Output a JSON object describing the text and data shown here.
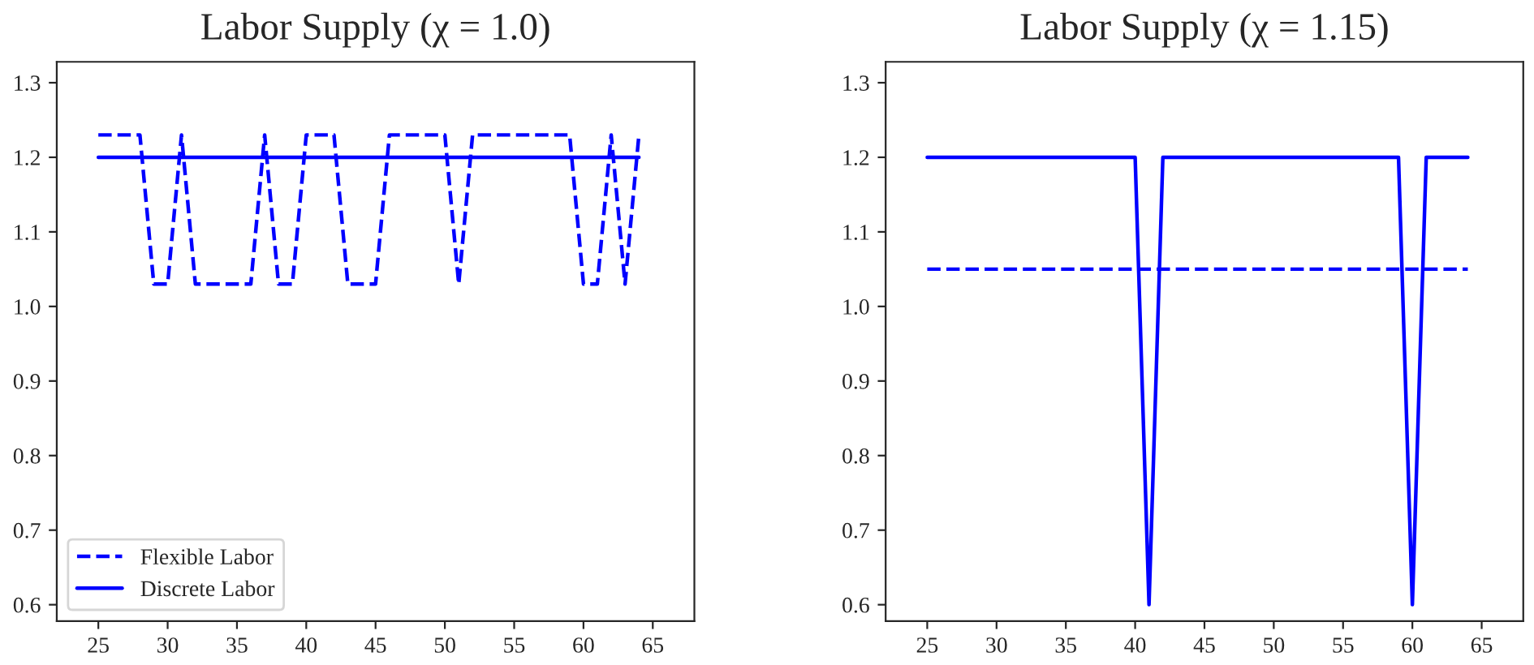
{
  "chart_data": [
    {
      "type": "line",
      "title": "Labor Supply (χ = 1.0)",
      "x": [
        25,
        26,
        27,
        28,
        29,
        30,
        31,
        32,
        33,
        34,
        35,
        36,
        37,
        38,
        39,
        40,
        41,
        42,
        43,
        44,
        45,
        46,
        47,
        48,
        49,
        50,
        51,
        52,
        53,
        54,
        55,
        56,
        57,
        58,
        59,
        60,
        61,
        62,
        63,
        64
      ],
      "series": [
        {
          "name": "Flexible Labor",
          "color": "#0000ff",
          "line_style": "dashed",
          "values": [
            1.23,
            1.23,
            1.23,
            1.23,
            1.03,
            1.03,
            1.23,
            1.03,
            1.03,
            1.03,
            1.03,
            1.03,
            1.23,
            1.03,
            1.03,
            1.23,
            1.23,
            1.23,
            1.03,
            1.03,
            1.03,
            1.23,
            1.23,
            1.23,
            1.23,
            1.23,
            1.03,
            1.23,
            1.23,
            1.23,
            1.23,
            1.23,
            1.23,
            1.23,
            1.23,
            1.03,
            1.03,
            1.23,
            1.03,
            1.23
          ]
        },
        {
          "name": "Discrete Labor",
          "color": "#0000ff",
          "line_style": "solid",
          "values": [
            1.2,
            1.2,
            1.2,
            1.2,
            1.2,
            1.2,
            1.2,
            1.2,
            1.2,
            1.2,
            1.2,
            1.2,
            1.2,
            1.2,
            1.2,
            1.2,
            1.2,
            1.2,
            1.2,
            1.2,
            1.2,
            1.2,
            1.2,
            1.2,
            1.2,
            1.2,
            1.2,
            1.2,
            1.2,
            1.2,
            1.2,
            1.2,
            1.2,
            1.2,
            1.2,
            1.2,
            1.2,
            1.2,
            1.2,
            1.2
          ]
        }
      ],
      "xlim": [
        22,
        68
      ],
      "xticks": [
        25,
        30,
        35,
        40,
        45,
        50,
        55,
        60,
        65
      ],
      "ylim": [
        0.578,
        1.328
      ],
      "yticks": [
        0.6,
        0.7,
        0.8,
        0.9,
        {
          "value": 1.0,
          "label": "1.0"
        },
        1.1,
        1.2,
        1.3
      ],
      "grid": false,
      "legend": "bottom left"
    },
    {
      "type": "line",
      "title": "Labor Supply (χ = 1.15)",
      "x": [
        25,
        26,
        27,
        28,
        29,
        30,
        31,
        32,
        33,
        34,
        35,
        36,
        37,
        38,
        39,
        40,
        41,
        42,
        43,
        44,
        45,
        46,
        47,
        48,
        49,
        50,
        51,
        52,
        53,
        54,
        55,
        56,
        57,
        58,
        59,
        60,
        61,
        62,
        63,
        64
      ],
      "series": [
        {
          "color": "#0000ff",
          "line_style": "dashed",
          "values": [
            1.05,
            1.05,
            1.05,
            1.05,
            1.05,
            1.05,
            1.05,
            1.05,
            1.05,
            1.05,
            1.05,
            1.05,
            1.05,
            1.05,
            1.05,
            1.05,
            1.05,
            1.05,
            1.05,
            1.05,
            1.05,
            1.05,
            1.05,
            1.05,
            1.05,
            1.05,
            1.05,
            1.05,
            1.05,
            1.05,
            1.05,
            1.05,
            1.05,
            1.05,
            1.05,
            1.05,
            1.05,
            1.05,
            1.05,
            1.05
          ]
        },
        {
          "color": "#0000ff",
          "line_style": "solid",
          "values": [
            1.2,
            1.2,
            1.2,
            1.2,
            1.2,
            1.2,
            1.2,
            1.2,
            1.2,
            1.2,
            1.2,
            1.2,
            1.2,
            1.2,
            1.2,
            1.2,
            0.6,
            1.2,
            1.2,
            1.2,
            1.2,
            1.2,
            1.2,
            1.2,
            1.2,
            1.2,
            1.2,
            1.2,
            1.2,
            1.2,
            1.2,
            1.2,
            1.2,
            1.2,
            1.2,
            0.6,
            1.2,
            1.2,
            1.2,
            1.2
          ]
        }
      ],
      "xlim": [
        22,
        68
      ],
      "xticks": [
        25,
        30,
        35,
        40,
        45,
        50,
        55,
        60,
        65
      ],
      "ylim": [
        0.578,
        1.328
      ],
      "yticks": [
        0.6,
        0.7,
        0.8,
        0.9,
        {
          "value": 1.0,
          "label": "1.0"
        },
        1.1,
        1.2,
        1.3
      ],
      "grid": false
    }
  ]
}
